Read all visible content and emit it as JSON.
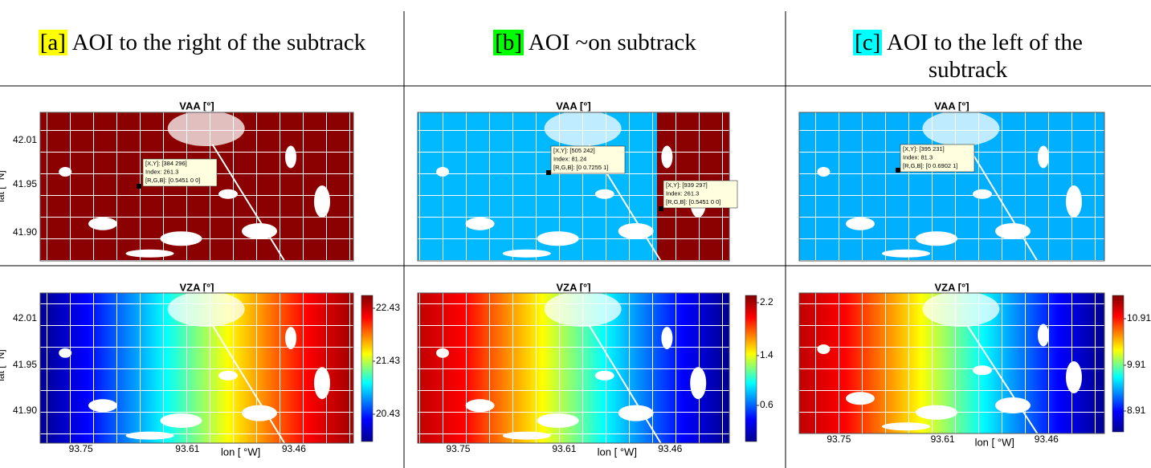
{
  "columns": [
    {
      "label": "[a]",
      "title": "AOI to the right of the subtrack",
      "vaa": {
        "title": "VAA [°]",
        "tooltips": [
          {
            "lines": [
              "[X,Y]: [384 296]",
              "Index: 261.3",
              "[R,G,B]: [0.5451 0 0]"
            ]
          }
        ]
      },
      "vza": {
        "title": "VZA [°]",
        "colorbar_ticks": [
          "22.43",
          "21.43",
          "20.43"
        ]
      }
    },
    {
      "label": "[b]",
      "title": "AOI ~on subtrack",
      "vaa": {
        "title": "VAA [°]",
        "tooltips": [
          {
            "lines": [
              "[X,Y]: [505 242]",
              "Index: 81.24",
              "[R,G,B]: [0 0.7255 1]"
            ]
          },
          {
            "lines": [
              "[X,Y]: [939 297]",
              "Index: 261.3",
              "[R,G,B]: [0.5451 0 0]"
            ]
          }
        ]
      },
      "vza": {
        "title": "VZA [°]",
        "colorbar_ticks": [
          "2.2",
          "1.4",
          "0.6"
        ]
      }
    },
    {
      "label": "[c]",
      "title": "AOI to the left of the subtrack",
      "vaa": {
        "title": "VAA [°]",
        "tooltips": [
          {
            "lines": [
              "[X,Y]: [395 231]",
              "Index: 81.3",
              "[R,G,B]: [0 0.6902 1]"
            ]
          }
        ]
      },
      "vza": {
        "title": "VZA [°]",
        "colorbar_ticks": [
          "10.91",
          "9.91",
          "8.91"
        ]
      }
    }
  ],
  "axes": {
    "y_label": "lat [ °N]",
    "y_ticks": [
      "42.01",
      "41.95",
      "41.90"
    ],
    "x_label": "lon [ °W]",
    "x_ticks": [
      "93.75",
      "93.61",
      "93.46"
    ]
  }
}
